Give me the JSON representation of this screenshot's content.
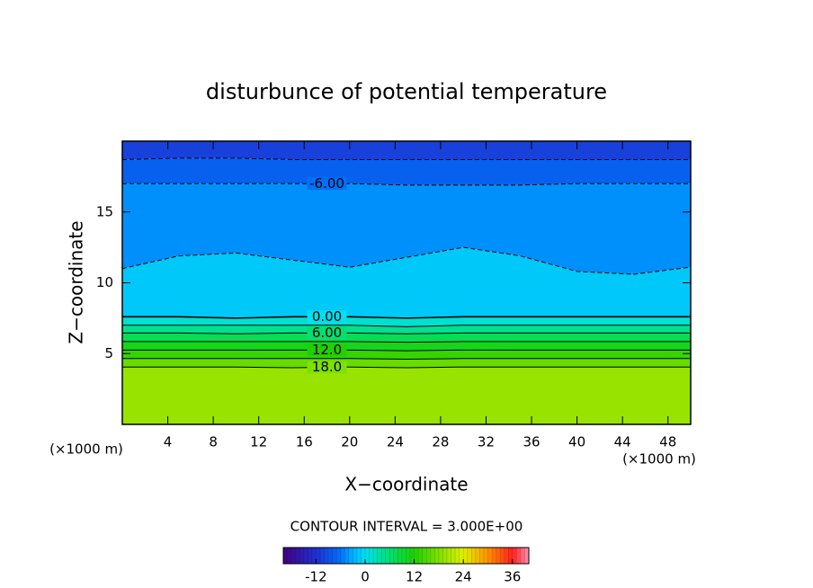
{
  "chart_data": {
    "type": "contour",
    "title": "disturbunce of potential temperature",
    "xlabel": "X−coordinate",
    "ylabel": "Z−coordinate",
    "xunit": "(×1000 m)",
    "yunit": "(×1000 m)",
    "xlim": [
      0,
      50
    ],
    "ylim": [
      0,
      20
    ],
    "xticks": [
      4,
      8,
      12,
      16,
      20,
      24,
      28,
      32,
      36,
      40,
      44,
      48
    ],
    "yticks": [
      5,
      10,
      15
    ],
    "contour_x": [
      0,
      5,
      10,
      15,
      20,
      25,
      30,
      35,
      40,
      45,
      50
    ],
    "contours": [
      {
        "value": -9,
        "z": [
          18.7,
          18.8,
          18.8,
          18.7,
          18.7,
          18.7,
          18.7,
          18.7,
          18.7,
          18.7,
          18.7
        ]
      },
      {
        "value": -6,
        "label": "-6.00",
        "z": [
          17.0,
          17.0,
          17.0,
          17.0,
          17.0,
          16.9,
          16.9,
          16.9,
          17.0,
          17.0,
          17.0
        ]
      },
      {
        "value": -3,
        "z": [
          11.0,
          11.9,
          12.1,
          11.6,
          11.1,
          11.8,
          12.5,
          11.9,
          10.8,
          10.6,
          11.1
        ]
      },
      {
        "value": 0,
        "label": "0.00",
        "z": [
          7.6,
          7.6,
          7.5,
          7.6,
          7.6,
          7.5,
          7.6,
          7.6,
          7.6,
          7.6,
          7.6
        ]
      },
      {
        "value": 3,
        "z": [
          7.0,
          7.0,
          7.0,
          7.0,
          7.0,
          6.9,
          7.0,
          7.0,
          7.0,
          7.0,
          7.0
        ]
      },
      {
        "value": 6,
        "label": "6.00",
        "z": [
          6.45,
          6.45,
          6.4,
          6.45,
          6.45,
          6.4,
          6.45,
          6.45,
          6.45,
          6.45,
          6.45
        ]
      },
      {
        "value": 9,
        "z": [
          5.85,
          5.85,
          5.85,
          5.85,
          5.85,
          5.8,
          5.85,
          5.85,
          5.85,
          5.85,
          5.85
        ]
      },
      {
        "value": 12,
        "label": "12.0",
        "z": [
          5.25,
          5.25,
          5.25,
          5.25,
          5.25,
          5.2,
          5.25,
          5.25,
          5.25,
          5.25,
          5.25
        ]
      },
      {
        "value": 15,
        "z": [
          4.65,
          4.65,
          4.65,
          4.65,
          4.65,
          4.6,
          4.65,
          4.65,
          4.65,
          4.65,
          4.65
        ]
      },
      {
        "value": 18,
        "label": "18.0",
        "z": [
          4.05,
          4.05,
          4.05,
          4.0,
          4.05,
          4.0,
          4.05,
          4.05,
          4.05,
          4.05,
          4.05
        ]
      }
    ],
    "contour_interval_label": "CONTOUR INTERVAL = 3.000E+00",
    "clim": [
      -20,
      40
    ],
    "cbticks": [
      -12,
      0,
      12,
      24,
      36
    ],
    "colormap": [
      [
        -20,
        "#400080"
      ],
      [
        -12,
        "#2030d0"
      ],
      [
        -6,
        "#0070f8"
      ],
      [
        -3,
        "#00b0ff"
      ],
      [
        0,
        "#00e0f0"
      ],
      [
        6,
        "#00e070"
      ],
      [
        12,
        "#20d000"
      ],
      [
        24,
        "#e0f000"
      ],
      [
        30,
        "#ff9000"
      ],
      [
        36,
        "#ff2020"
      ],
      [
        40,
        "#ff90b0"
      ]
    ]
  }
}
